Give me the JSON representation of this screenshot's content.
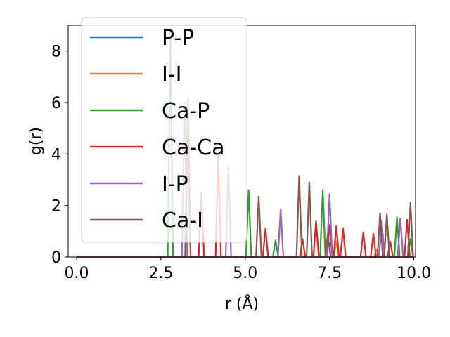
{
  "chart_data": {
    "type": "line",
    "xlabel": "r (Å)",
    "ylabel": "g(r)",
    "xlim": [
      -0.25,
      10.05
    ],
    "ylim": [
      0,
      9.0
    ],
    "xticks": [
      0.0,
      2.5,
      5.0,
      7.5,
      10.0
    ],
    "xtick_labels": [
      "0.0",
      "2.5",
      "5.0",
      "7.5",
      "10.0"
    ],
    "yticks": [
      0,
      2,
      4,
      6,
      8
    ],
    "ytick_labels": [
      "0",
      "2",
      "4",
      "6",
      "8"
    ],
    "grid": false,
    "legend_position": "upper-left",
    "series": [
      {
        "name": "P-P",
        "color": "#1f77b4",
        "peaks": [
          [
            2.78,
            0.0
          ]
        ]
      },
      {
        "name": "I-I",
        "color": "#ff7f0e",
        "peaks": [
          [
            7.7,
            0.6
          ],
          [
            8.9,
            0.3
          ]
        ]
      },
      {
        "name": "Ca-P",
        "color": "#2ca02c",
        "peaks": [
          [
            2.78,
            8.5
          ],
          [
            5.1,
            2.6
          ],
          [
            5.9,
            0.65
          ],
          [
            7.3,
            2.6
          ],
          [
            9.5,
            1.55
          ],
          [
            9.9,
            0.7
          ]
        ]
      },
      {
        "name": "Ca-Ca",
        "color": "#d62728",
        "peaks": [
          [
            3.3,
            5.5
          ],
          [
            3.7,
            2.5
          ],
          [
            4.2,
            4.0
          ],
          [
            5.6,
            1.1
          ],
          [
            6.7,
            0.7
          ],
          [
            7.1,
            1.4
          ],
          [
            7.5,
            1.25
          ],
          [
            7.7,
            1.2
          ],
          [
            7.9,
            1.1
          ],
          [
            8.5,
            0.95
          ],
          [
            8.8,
            0.9
          ],
          [
            9.3,
            0.6
          ],
          [
            9.8,
            1.45
          ]
        ]
      },
      {
        "name": "I-P",
        "color": "#9467bd",
        "peaks": [
          [
            3.2,
            6.0
          ],
          [
            4.5,
            3.5
          ],
          [
            6.05,
            1.85
          ],
          [
            7.5,
            2.45
          ],
          [
            9.05,
            1.4
          ],
          [
            9.6,
            1.5
          ]
        ]
      },
      {
        "name": "Ca-I",
        "color": "#8c564b",
        "peaks": [
          [
            3.3,
            6.2
          ],
          [
            5.4,
            2.35
          ],
          [
            6.6,
            3.15
          ],
          [
            6.9,
            2.9
          ],
          [
            7.45,
            0.9
          ],
          [
            9.0,
            1.7
          ],
          [
            9.2,
            1.65
          ],
          [
            9.9,
            2.1
          ]
        ]
      }
    ]
  }
}
